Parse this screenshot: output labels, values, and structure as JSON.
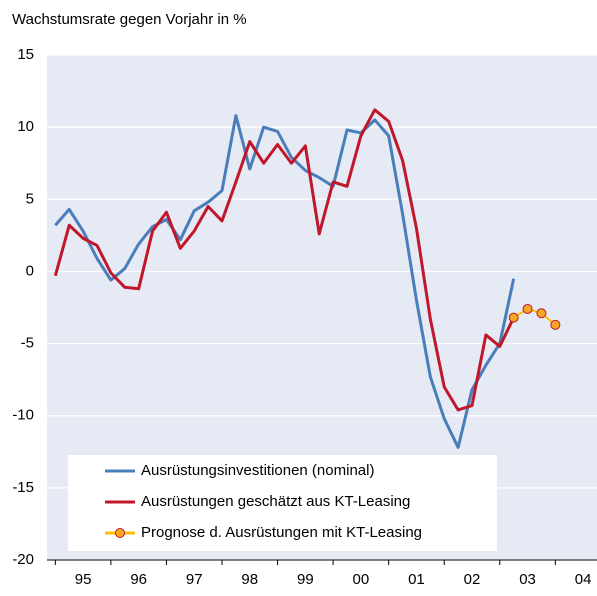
{
  "chart_data": {
    "type": "line",
    "title": "Wachstumsrate gegen Vorjahr in %",
    "x": [
      1995,
      1995.25,
      1995.5,
      1995.75,
      1996,
      1996.25,
      1996.5,
      1996.75,
      1997,
      1997.25,
      1997.5,
      1997.75,
      1998,
      1998.25,
      1998.5,
      1998.75,
      1999,
      1999.25,
      1999.5,
      1999.75,
      2000,
      2000.25,
      2000.5,
      2000.75,
      2001,
      2001.25,
      2001.5,
      2001.75,
      2002,
      2002.25,
      2002.5,
      2002.75,
      2003,
      2003.25,
      2003.5,
      2003.75,
      2004
    ],
    "xlim": [
      1994.85,
      2004.75
    ],
    "xticks": [
      {
        "value": 1995.5,
        "label": "95"
      },
      {
        "value": 1996.5,
        "label": "96"
      },
      {
        "value": 1997.5,
        "label": "97"
      },
      {
        "value": 1998.5,
        "label": "98"
      },
      {
        "value": 1999.5,
        "label": "99"
      },
      {
        "value": 2000.5,
        "label": "00"
      },
      {
        "value": 2001.5,
        "label": "01"
      },
      {
        "value": 2002.5,
        "label": "02"
      },
      {
        "value": 2003.5,
        "label": "03"
      },
      {
        "value": 2004.5,
        "label": "04"
      }
    ],
    "ylim": [
      -20,
      15
    ],
    "yticks": [
      -20,
      -15,
      -10,
      -5,
      0,
      5,
      10,
      15
    ],
    "grid": true,
    "series": [
      {
        "name": "Ausrüstungsinvestitionen (nominal)",
        "color": "#4a7ebb",
        "markers": false,
        "values": [
          3.2,
          4.3,
          2.8,
          0.9,
          -0.6,
          0.2,
          1.9,
          3.1,
          3.6,
          2.2,
          4.2,
          4.8,
          5.6,
          10.8,
          7.1,
          10.0,
          9.7,
          7.9,
          7.0,
          6.5,
          5.9,
          9.8,
          9.6,
          10.5,
          9.4,
          4.0,
          -2.0,
          -7.3,
          -10.2,
          -12.2,
          -8.2,
          -6.5,
          -5.0,
          -0.5,
          null,
          null,
          null
        ]
      },
      {
        "name": "Ausrüstungen geschätzt aus KT-Leasing",
        "color": "#c0182a",
        "markers": false,
        "values": [
          -0.3,
          3.2,
          2.3,
          1.8,
          -0.1,
          -1.1,
          -1.2,
          2.8,
          4.1,
          1.6,
          2.8,
          4.5,
          3.5,
          6.2,
          9.0,
          7.5,
          8.8,
          7.5,
          8.7,
          2.6,
          6.2,
          5.9,
          9.4,
          11.2,
          10.4,
          7.7,
          3.0,
          -3.3,
          -8.0,
          -9.6,
          -9.3,
          -4.4,
          -5.2,
          -3.2,
          null,
          null,
          null
        ]
      },
      {
        "name": "Prognose d. Ausrüstungen mit KT-Leasing",
        "color": "#ffc000",
        "markers": true,
        "values": [
          null,
          null,
          null,
          null,
          null,
          null,
          null,
          null,
          null,
          null,
          null,
          null,
          null,
          null,
          null,
          null,
          null,
          null,
          null,
          null,
          null,
          null,
          null,
          null,
          null,
          null,
          null,
          null,
          null,
          null,
          null,
          null,
          null,
          -3.2,
          -2.6,
          -2.9,
          -3.7
        ]
      }
    ]
  }
}
